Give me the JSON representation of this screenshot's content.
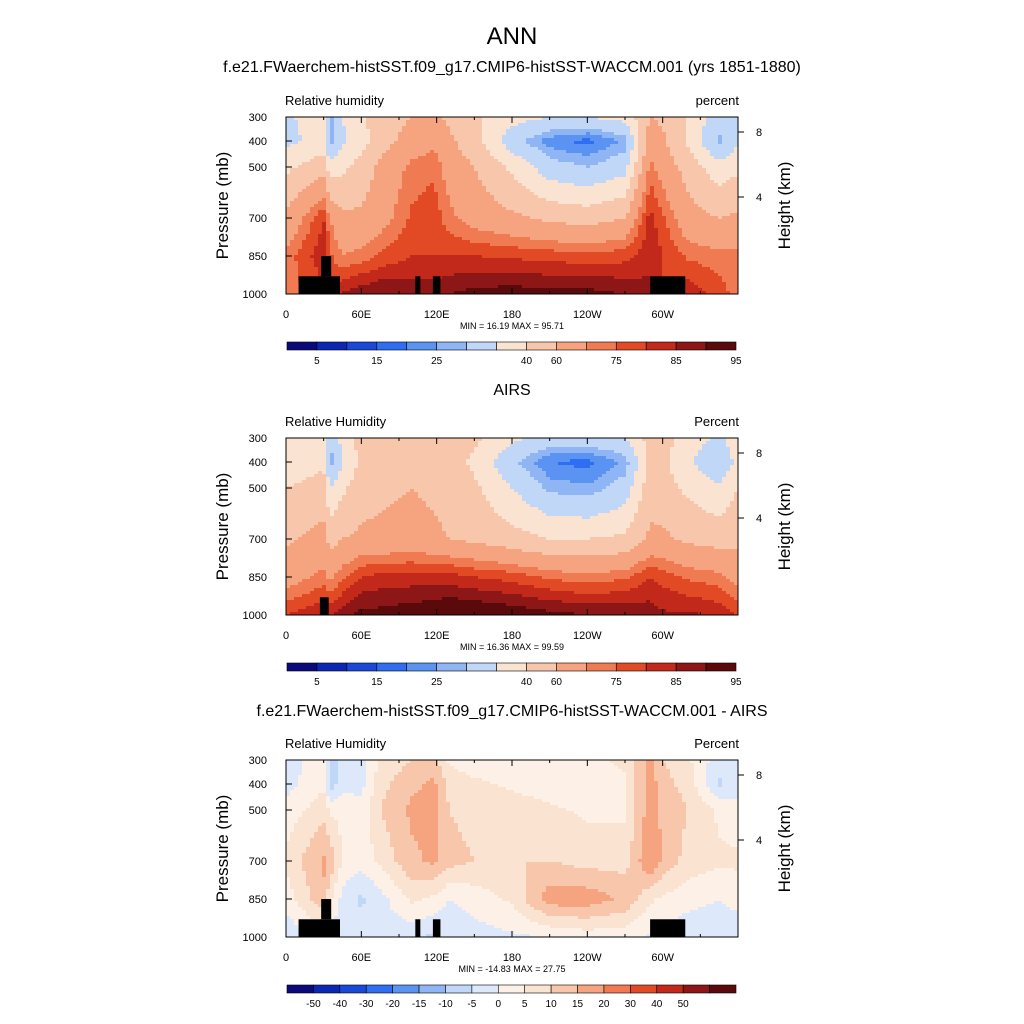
{
  "figure": {
    "title": "ANN"
  },
  "colors": {
    "land": "#000000",
    "rh_palette": [
      "#0a0a7a",
      "#0b28b4",
      "#1a49d8",
      "#2f6ef0",
      "#5a93f2",
      "#8fb5f5",
      "#c1d7f8",
      "#fbe3d2",
      "#f8c7ab",
      "#f5a47f",
      "#f07a52",
      "#e24a26",
      "#c2291a",
      "#8d1616",
      "#5a0a0a"
    ],
    "diff_palette": [
      "#0a0a7a",
      "#0b28b4",
      "#1a49d8",
      "#2f6ef0",
      "#5a93f2",
      "#8fb5f5",
      "#c1d7f8",
      "#dde9fb",
      "#fdf0e6",
      "#fbe3d2",
      "#f8c7ab",
      "#f5a47f",
      "#f07a52",
      "#e24a26",
      "#c2291a",
      "#8d1616",
      "#5a0a0a"
    ]
  },
  "chart_data": [
    {
      "type": "heatmap",
      "panel_title": "f.e21.FWaerchem-histSST.f09_g17.CMIP6-histSST-WACCM.001 (yrs 1851-1880)",
      "left_label": "Relative humidity",
      "right_label": "percent",
      "ylabel": "Pressure (mb)",
      "y2label": "Height (km)",
      "x_ticks": [
        "0",
        "60E",
        "120E",
        "180",
        "120W",
        "60W"
      ],
      "y_ticks": [
        "300",
        "400",
        "500",
        "700",
        "850",
        "1000"
      ],
      "y2_ticks": [
        "8",
        "4"
      ],
      "stats_text": "MIN = 16.19  MAX = 95.71",
      "colorbar_labels": [
        "5",
        "15",
        "25",
        "40",
        "60",
        "75",
        "85",
        "95"
      ],
      "land": [
        {
          "lon": [
            10,
            43
          ],
          "p": [
            930,
            1000
          ]
        },
        {
          "lon": [
            28,
            36
          ],
          "p": [
            850,
            930
          ]
        },
        {
          "lon": [
            103,
            107
          ],
          "p": [
            930,
            1000
          ]
        },
        {
          "lon": [
            117,
            123
          ],
          "p": [
            930,
            1000
          ]
        },
        {
          "lon": [
            290,
            318
          ],
          "p": [
            930,
            1000
          ]
        }
      ],
      "field": {
        "kind": "model",
        "lon": [
          0,
          30,
          35,
          45,
          60,
          75,
          100,
          118,
          130,
          150,
          180,
          210,
          240,
          270,
          290,
          300,
          320,
          345,
          360
        ],
        "p": [
          300,
          400,
          500,
          700,
          850,
          1000
        ],
        "values": [
          [
            38,
            46,
            28,
            40,
            48,
            55,
            60,
            62,
            58,
            52,
            44,
            40,
            40,
            44,
            60,
            58,
            50,
            34,
            40
          ],
          [
            37,
            44,
            26,
            38,
            46,
            56,
            64,
            68,
            62,
            54,
            34,
            22,
            18,
            26,
            66,
            62,
            48,
            28,
            38
          ],
          [
            48,
            56,
            44,
            48,
            54,
            62,
            72,
            74,
            66,
            60,
            48,
            34,
            30,
            36,
            72,
            66,
            56,
            44,
            48
          ],
          [
            62,
            80,
            70,
            62,
            62,
            66,
            76,
            78,
            72,
            66,
            62,
            58,
            56,
            60,
            82,
            76,
            64,
            60,
            62
          ],
          [
            72,
            84,
            76,
            70,
            72,
            76,
            80,
            80,
            80,
            80,
            79,
            78,
            77,
            78,
            84,
            80,
            74,
            72,
            72
          ],
          [
            72,
            78,
            76,
            86,
            89,
            90,
            88,
            88,
            90,
            92,
            93,
            92,
            92,
            90,
            86,
            80,
            84,
            78,
            72
          ]
        ]
      }
    },
    {
      "type": "heatmap",
      "panel_title": "AIRS",
      "left_label": "Relative Humidity",
      "right_label": "Percent",
      "ylabel": "Pressure (mb)",
      "y2label": "Height (km)",
      "x_ticks": [
        "0",
        "60E",
        "120E",
        "180",
        "120W",
        "60W"
      ],
      "y_ticks": [
        "300",
        "400",
        "500",
        "700",
        "850",
        "1000"
      ],
      "y2_ticks": [
        "8",
        "4"
      ],
      "stats_text": "MIN = 16.36  MAX = 99.59",
      "colorbar_labels": [
        "5",
        "15",
        "25",
        "40",
        "60",
        "75",
        "85",
        "95"
      ],
      "land": [
        {
          "lon": [
            27,
            34
          ],
          "p": [
            930,
            1000
          ]
        }
      ],
      "field": {
        "kind": "model",
        "lon": [
          0,
          30,
          35,
          45,
          60,
          75,
          100,
          118,
          130,
          150,
          180,
          210,
          240,
          270,
          290,
          300,
          320,
          345,
          360
        ],
        "p": [
          300,
          400,
          500,
          700,
          850,
          1000
        ],
        "values": [
          [
            46,
            50,
            30,
            44,
            54,
            56,
            58,
            56,
            56,
            52,
            42,
            36,
            36,
            40,
            54,
            54,
            46,
            38,
            46
          ],
          [
            44,
            48,
            26,
            40,
            52,
            56,
            58,
            56,
            54,
            48,
            32,
            20,
            18,
            26,
            54,
            52,
            42,
            30,
            44
          ],
          [
            50,
            54,
            40,
            48,
            56,
            58,
            60,
            58,
            56,
            52,
            40,
            28,
            26,
            34,
            56,
            54,
            48,
            42,
            50
          ],
          [
            58,
            64,
            56,
            60,
            62,
            62,
            64,
            62,
            60,
            58,
            54,
            50,
            50,
            52,
            62,
            62,
            58,
            56,
            58
          ],
          [
            66,
            72,
            68,
            74,
            80,
            82,
            82,
            82,
            82,
            80,
            78,
            74,
            72,
            74,
            80,
            78,
            74,
            72,
            66
          ],
          [
            80,
            85,
            84,
            88,
            92,
            92,
            94,
            95,
            97,
            96,
            94,
            92,
            90,
            90,
            88,
            86,
            86,
            84,
            80
          ]
        ]
      }
    },
    {
      "type": "heatmap",
      "panel_title": "f.e21.FWaerchem-histSST.f09_g17.CMIP6-histSST-WACCM.001 - AIRS",
      "left_label": "Relative Humidity",
      "right_label": "Percent",
      "ylabel": "Pressure (mb)",
      "y2label": "Height (km)",
      "x_ticks": [
        "0",
        "60E",
        "120E",
        "180",
        "120W",
        "60W"
      ],
      "y_ticks": [
        "300",
        "400",
        "500",
        "700",
        "850",
        "1000"
      ],
      "y2_ticks": [
        "8",
        "4"
      ],
      "stats_text": "MIN = -14.83  MAX = 27.75",
      "colorbar_labels": [
        "-50",
        "-40",
        "-30",
        "-20",
        "-15",
        "-10",
        "-5",
        "0",
        "5",
        "10",
        "15",
        "20",
        "30",
        "40",
        "50"
      ],
      "land": [
        {
          "lon": [
            10,
            43
          ],
          "p": [
            930,
            1000
          ]
        },
        {
          "lon": [
            28,
            36
          ],
          "p": [
            850,
            930
          ]
        },
        {
          "lon": [
            103,
            107
          ],
          "p": [
            930,
            1000
          ]
        },
        {
          "lon": [
            117,
            123
          ],
          "p": [
            930,
            1000
          ]
        },
        {
          "lon": [
            290,
            318
          ],
          "p": [
            930,
            1000
          ]
        }
      ],
      "field": {
        "kind": "diff",
        "lon": [
          0,
          30,
          35,
          45,
          60,
          75,
          100,
          118,
          130,
          150,
          180,
          210,
          240,
          270,
          290,
          300,
          320,
          345,
          360
        ],
        "p": [
          300,
          400,
          500,
          700,
          850,
          1000
        ],
        "values": [
          [
            -3,
            4,
            -6,
            -4,
            -2,
            6,
            10,
            12,
            4,
            2,
            2,
            4,
            4,
            6,
            16,
            10,
            6,
            -3,
            -3
          ],
          [
            -2,
            4,
            -8,
            -2,
            -2,
            8,
            14,
            16,
            8,
            6,
            4,
            2,
            2,
            4,
            18,
            12,
            8,
            -6,
            -2
          ],
          [
            2,
            8,
            4,
            4,
            2,
            10,
            16,
            16,
            10,
            8,
            8,
            6,
            4,
            4,
            18,
            14,
            10,
            4,
            2
          ],
          [
            6,
            16,
            14,
            4,
            2,
            6,
            14,
            16,
            12,
            10,
            10,
            10,
            8,
            8,
            20,
            14,
            8,
            6,
            6
          ],
          [
            2,
            14,
            6,
            -2,
            -6,
            -2,
            6,
            4,
            0,
            2,
            6,
            18,
            18,
            14,
            6,
            4,
            2,
            0,
            2
          ],
          [
            -4,
            2,
            -2,
            -3,
            -2,
            -2,
            -4,
            -6,
            -4,
            -2,
            -1,
            0,
            2,
            2,
            -1,
            -2,
            -4,
            -4,
            -4
          ]
        ]
      }
    }
  ]
}
